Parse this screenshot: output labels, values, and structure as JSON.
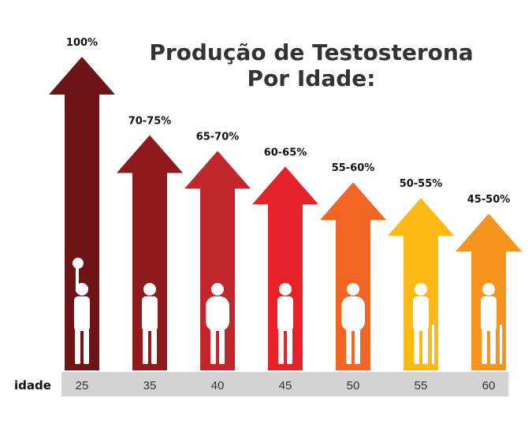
{
  "chart_data": {
    "type": "bar",
    "title_lines": [
      "Produção de Testosterona",
      "Por Idade:"
    ],
    "xlabel": "idade",
    "categories": [
      "25",
      "35",
      "40",
      "45",
      "50",
      "55",
      "60"
    ],
    "series": [
      {
        "range_low": [
          100,
          70,
          65,
          60,
          55,
          50,
          45
        ],
        "range_high": [
          100,
          75,
          70,
          65,
          60,
          55,
          50
        ],
        "labels": [
          "100%",
          "70-75%",
          "65-70%",
          "60-65%",
          "55-60%",
          "50-55%",
          "45-50%"
        ]
      }
    ],
    "ylim": [
      0,
      100
    ],
    "colors": [
      "#6e1416",
      "#8e1a1d",
      "#c1272d",
      "#e52228",
      "#f26522",
      "#fdb913",
      "#f7941d"
    ],
    "icons": [
      "basketball-player-icon",
      "standing-man-icon",
      "heavy-man-icon",
      "walking-man-icon",
      "heavy-man-icon",
      "man-with-cane-icon",
      "elderly-man-with-cane-icon"
    ]
  }
}
